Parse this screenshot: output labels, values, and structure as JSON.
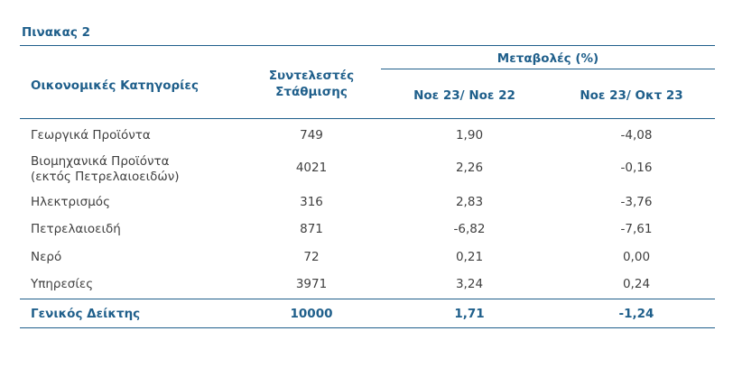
{
  "title": "Πινακας 2",
  "header": {
    "category": "Οικονομικές Κατηγορίες",
    "weights_line1": "Συντελεστές",
    "weights_line2": "Στάθμισης",
    "changes_group": "Μεταβολές (%)",
    "col_yoy": "Νοε 23/ Νοε 22",
    "col_mom": "Νοε 23/ Οκτ 23"
  },
  "rows": [
    {
      "category": "Γεωργικά Προϊόντα",
      "category2": "",
      "weight": "749",
      "yoy": "1,90",
      "mom": "-4,08"
    },
    {
      "category": "Βιομηχανικά Προϊόντα",
      "category2": "(εκτός Πετρελαιοειδών)",
      "weight": "4021",
      "yoy": "2,26",
      "mom": "-0,16"
    },
    {
      "category": "Ηλεκτρισμός",
      "category2": "",
      "weight": "316",
      "yoy": "2,83",
      "mom": "-3,76"
    },
    {
      "category": "Πετρελαιοειδή",
      "category2": "",
      "weight": "871",
      "yoy": "-6,82",
      "mom": "-7,61"
    },
    {
      "category": "Νερό",
      "category2": "",
      "weight": "72",
      "yoy": "0,21",
      "mom": "0,00"
    },
    {
      "category": "Υπηρεσίες",
      "category2": "",
      "weight": "3971",
      "yoy": "3,24",
      "mom": "0,24"
    }
  ],
  "total": {
    "category": "Γενικός Δείκτης",
    "weight": "10000",
    "yoy": "1,71",
    "mom": "-1,24"
  },
  "colors": {
    "accent": "#1f5f8b",
    "text": "#404040"
  }
}
